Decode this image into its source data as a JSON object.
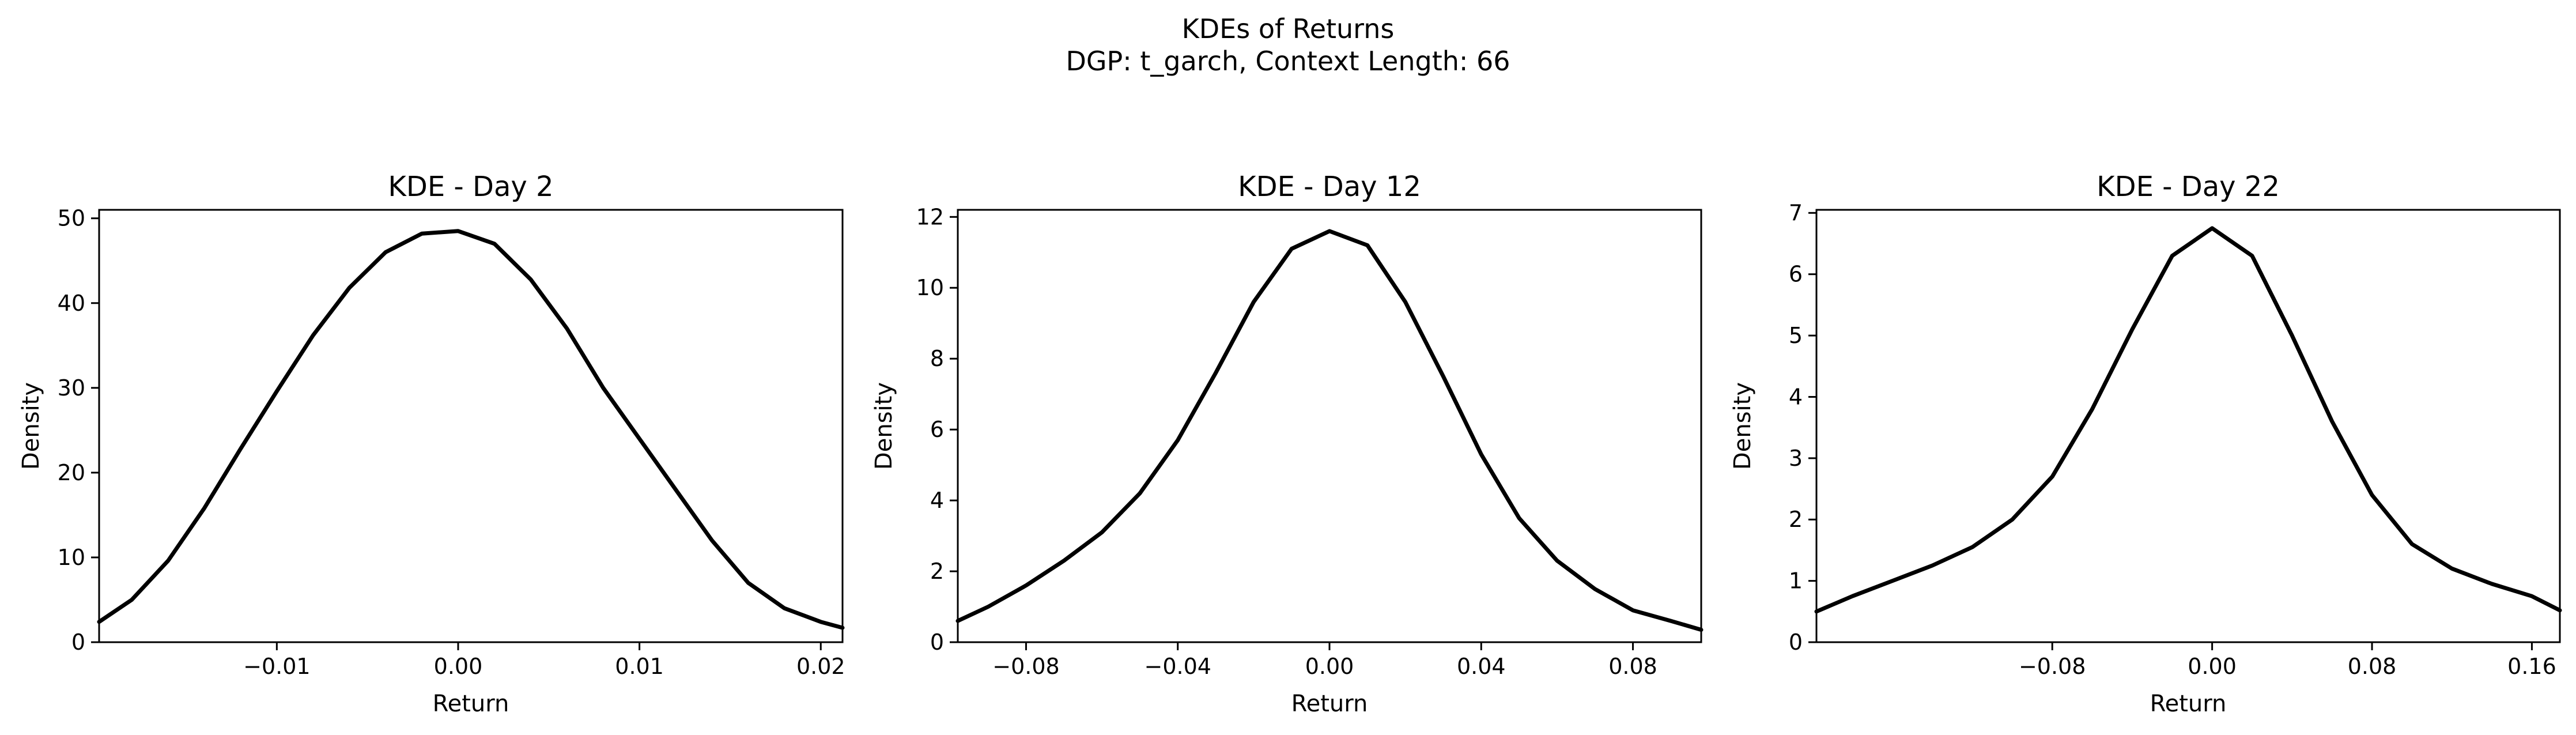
{
  "figure": {
    "title_line1": "KDEs of Returns",
    "title_line2": "DGP: t_garch, Context Length: 66"
  },
  "chart_data": [
    {
      "type": "line",
      "title": "KDE - Day 2",
      "xlabel": "Return",
      "ylabel": "Density",
      "xlim": [
        -0.0198,
        0.0212
      ],
      "ylim": [
        0,
        51
      ],
      "xticks": [
        -0.01,
        0.0,
        0.01,
        0.02
      ],
      "xtick_labels": [
        "−0.01",
        "0.00",
        "0.01",
        "0.02"
      ],
      "yticks": [
        0,
        10,
        20,
        30,
        40,
        50
      ],
      "ytick_labels": [
        "0",
        "10",
        "20",
        "30",
        "40",
        "50"
      ],
      "grid": false,
      "series": [
        {
          "x": [
            -0.0198,
            -0.018,
            -0.016,
            -0.014,
            -0.012,
            -0.01,
            -0.008,
            -0.006,
            -0.004,
            -0.002,
            0.0,
            0.002,
            0.004,
            0.006,
            0.008,
            0.01,
            0.012,
            0.014,
            0.016,
            0.018,
            0.02,
            0.0212
          ],
          "y": [
            2.4,
            5.0,
            9.6,
            15.8,
            22.8,
            29.6,
            36.2,
            41.8,
            46.0,
            48.2,
            48.5,
            47.0,
            42.8,
            37.0,
            30.0,
            24.0,
            18.0,
            12.0,
            7.0,
            4.0,
            2.4,
            1.7
          ]
        }
      ]
    },
    {
      "type": "line",
      "title": "KDE - Day 12",
      "xlabel": "Return",
      "ylabel": "Density",
      "xlim": [
        -0.098,
        0.098
      ],
      "ylim": [
        0,
        12.2
      ],
      "xticks": [
        -0.08,
        -0.04,
        0.0,
        0.04,
        0.08
      ],
      "xtick_labels": [
        "−0.08",
        "−0.04",
        "0.00",
        "0.04",
        "0.08"
      ],
      "yticks": [
        0,
        2,
        4,
        6,
        8,
        10,
        12
      ],
      "ytick_labels": [
        "0",
        "2",
        "4",
        "6",
        "8",
        "10",
        "12"
      ],
      "grid": false,
      "series": [
        {
          "x": [
            -0.098,
            -0.09,
            -0.08,
            -0.07,
            -0.06,
            -0.05,
            -0.04,
            -0.03,
            -0.02,
            -0.01,
            0.0,
            0.01,
            0.02,
            0.03,
            0.04,
            0.05,
            0.06,
            0.07,
            0.08,
            0.09,
            0.098
          ],
          "y": [
            0.6,
            1.0,
            1.6,
            2.3,
            3.1,
            4.2,
            5.7,
            7.6,
            9.6,
            11.1,
            11.6,
            11.2,
            9.6,
            7.5,
            5.3,
            3.5,
            2.3,
            1.5,
            0.9,
            0.6,
            0.35
          ]
        }
      ]
    },
    {
      "type": "line",
      "title": "KDE - Day 22",
      "xlabel": "Return",
      "ylabel": "Density",
      "xlim": [
        -0.198,
        0.174
      ],
      "ylim": [
        0,
        7.05
      ],
      "xticks": [
        -0.08,
        0.0,
        0.08,
        0.16
      ],
      "xtick_labels": [
        "−0.08",
        "0.00",
        "0.08",
        "0.16"
      ],
      "yticks": [
        0,
        1,
        2,
        3,
        4,
        5,
        6,
        7
      ],
      "ytick_labels": [
        "0",
        "1",
        "2",
        "3",
        "4",
        "5",
        "6",
        "7"
      ],
      "grid": false,
      "series": [
        {
          "x": [
            -0.198,
            -0.18,
            -0.16,
            -0.14,
            -0.12,
            -0.1,
            -0.08,
            -0.06,
            -0.04,
            -0.02,
            0.0,
            0.02,
            0.04,
            0.06,
            0.08,
            0.1,
            0.12,
            0.14,
            0.16,
            0.174
          ],
          "y": [
            0.5,
            0.75,
            1.0,
            1.25,
            1.55,
            2.0,
            2.7,
            3.8,
            5.1,
            6.3,
            6.75,
            6.3,
            5.0,
            3.6,
            2.4,
            1.6,
            1.2,
            0.95,
            0.75,
            0.52
          ]
        }
      ]
    }
  ]
}
